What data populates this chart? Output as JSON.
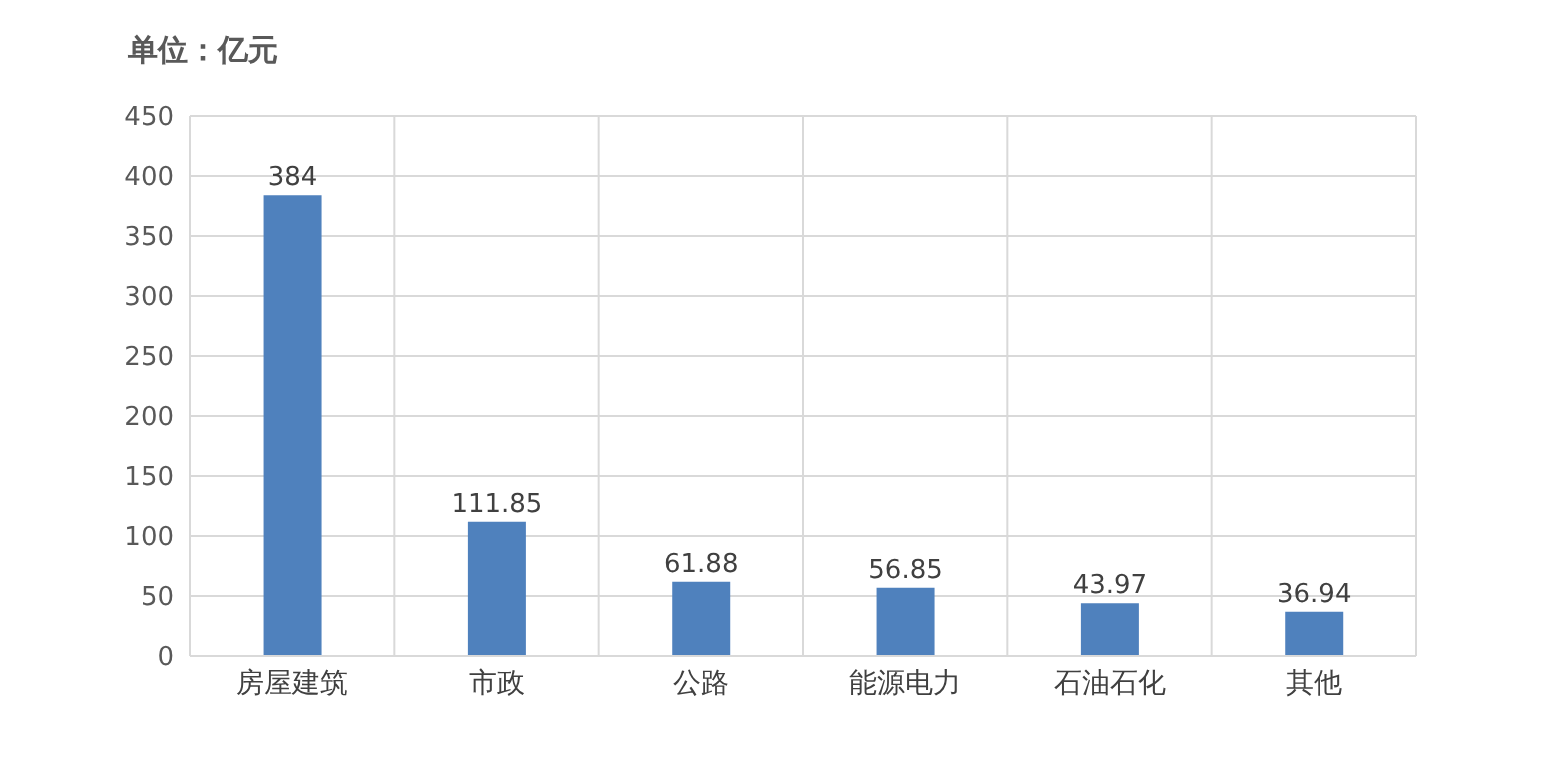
{
  "chart_data": {
    "type": "bar",
    "ylabel": "单位：亿元",
    "categories": [
      "房屋建筑",
      "市政",
      "公路",
      "能源电力",
      "石油石化",
      "其他"
    ],
    "values": [
      384,
      111.85,
      61.88,
      56.85,
      43.97,
      36.94
    ],
    "color": "#4f81bd",
    "ylim": [
      0,
      450
    ],
    "yticks": [
      0,
      50,
      100,
      150,
      200,
      250,
      300,
      350,
      400,
      450
    ],
    "grid": true,
    "data_labels": true
  }
}
